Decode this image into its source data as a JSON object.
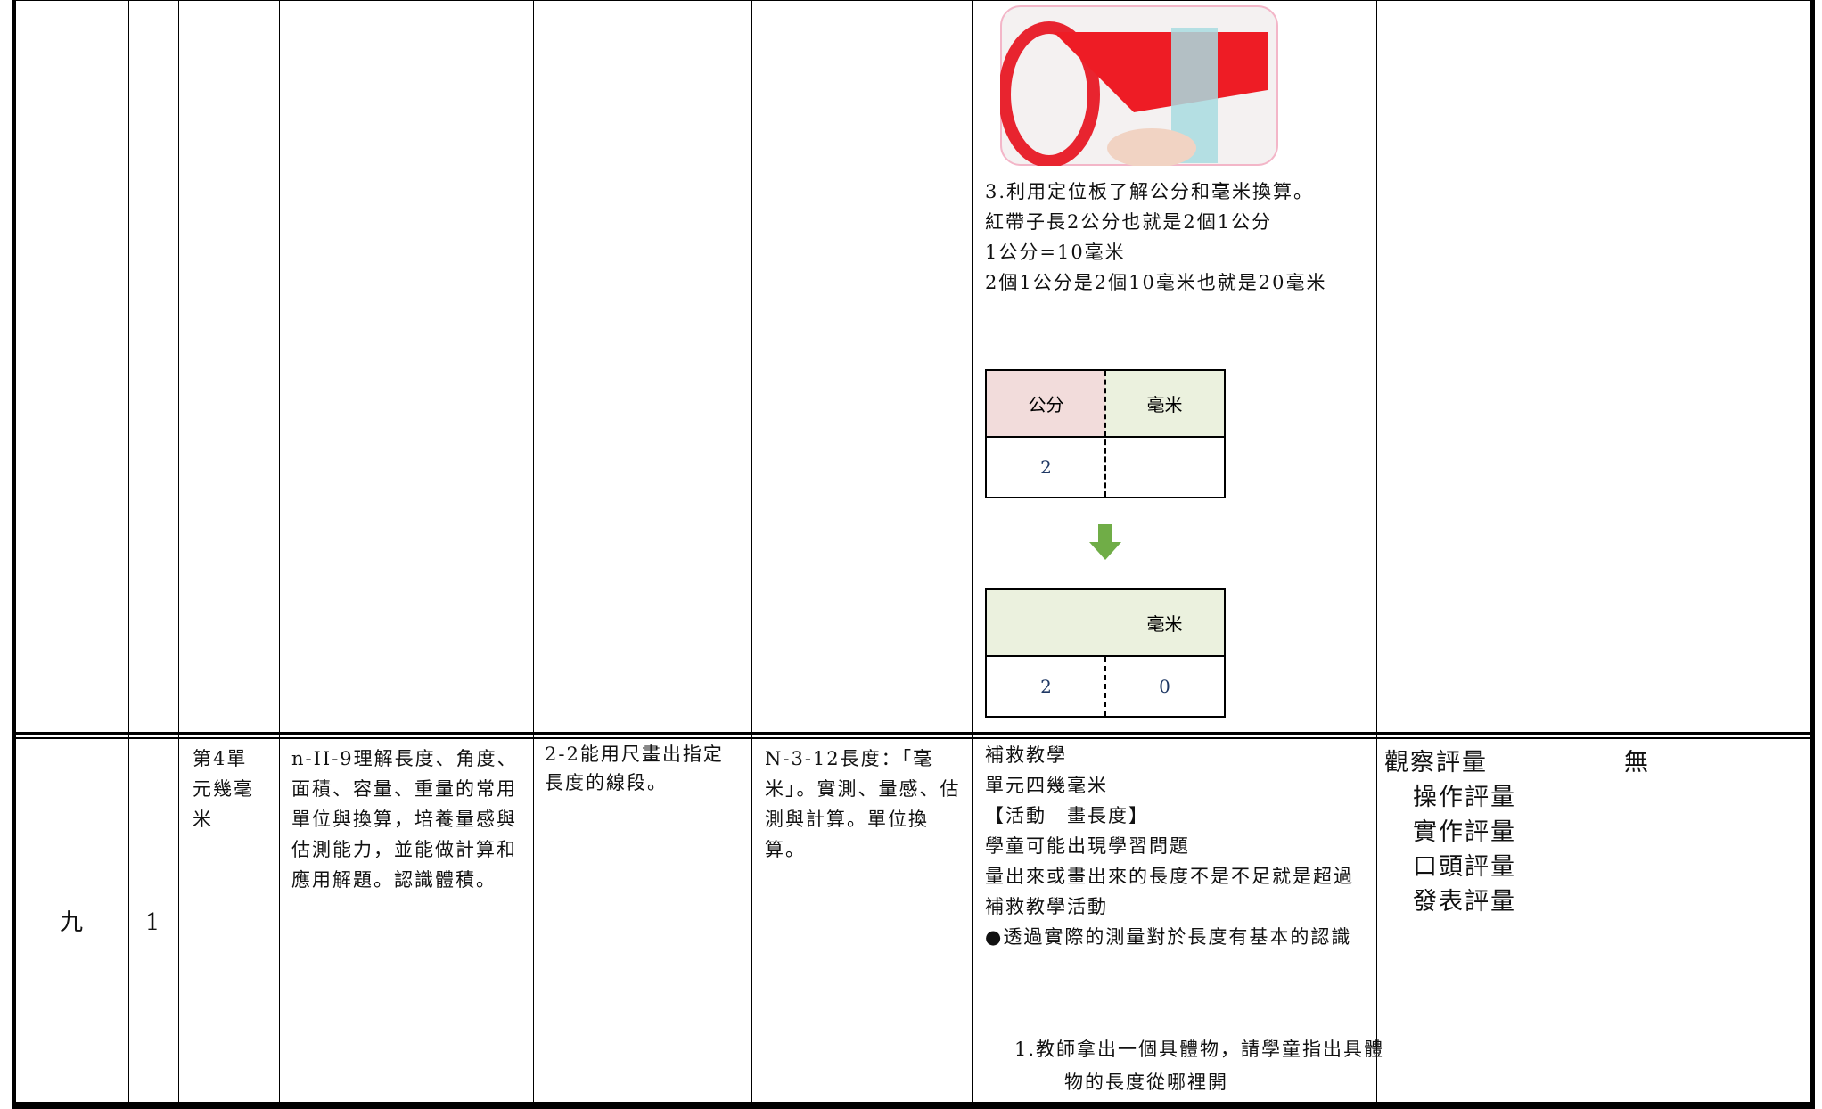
{
  "top_row": {
    "steps": [
      "3.利用定位板了解公分和毫米換算。",
      "紅帶子長2公分也就是2個1公分",
      "1公分=10毫米",
      "2個1公分是2個10毫米也就是20毫米"
    ],
    "table1": {
      "headers": [
        "公分",
        "毫米"
      ],
      "values": [
        "2"
      ]
    },
    "table2": {
      "header": "毫米",
      "values": [
        "2",
        "0"
      ]
    }
  },
  "bottom_row": {
    "week": "九",
    "periods": "1",
    "unit": "第4單元幾毫米",
    "indicator": "n-II-9理解長度、角度、面積、容量、重量的常用單位與換算，培養量感與估測能力，並能做計算和應用解題。認識體積。",
    "objective": "2-2能用尺畫出指定長度的線段。",
    "content": "N-3-12長度：「毫米」。實測、量感、估測與計算。單位換算。",
    "activities": [
      "補救教學",
      "單元四幾毫米",
      "【活動　畫長度】",
      "學童可能出現學習問題",
      "量出來或畫出來的長度不是不足就是超過",
      "補救教學活動",
      "●透過實際的測量對於長度有基本的認識"
    ],
    "activity_step": "1.教師拿出一個具體物，請學童指出具體物的長度從哪裡開",
    "assessment": [
      "觀察評量",
      "操作評量",
      "實作評量",
      "口頭評量",
      "發表評量"
    ],
    "note": "無"
  }
}
